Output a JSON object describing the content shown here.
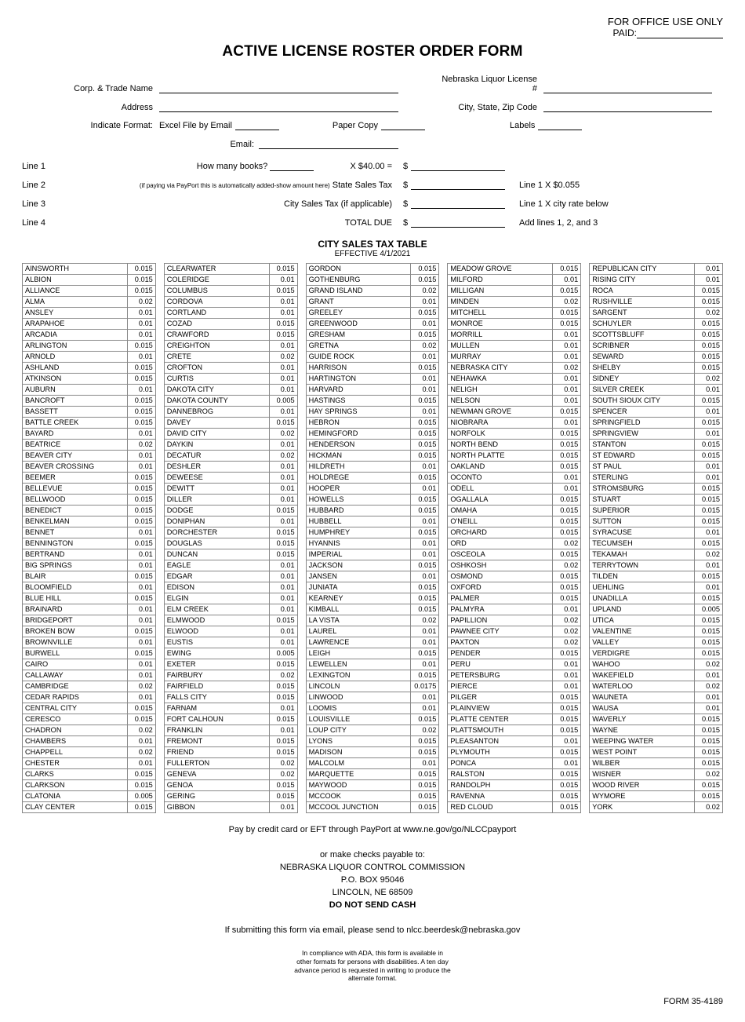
{
  "header": {
    "office_use": "FOR OFFICE USE ONLY",
    "paid_label": "PAID:",
    "title": "ACTIVE LICENSE ROSTER ORDER FORM"
  },
  "fields": {
    "corp_trade": "Corp. & Trade Name",
    "license_no": "Nebraska Liquor License #",
    "address": "Address",
    "city_state_zip": "City, State, Zip Code",
    "format_label": "Indicate Format:",
    "format_excel": "Excel File by Email",
    "format_paper": "Paper Copy",
    "format_labels": "Labels",
    "email_label": "Email:"
  },
  "lines": {
    "l1": "Line 1",
    "l1_q": "How many books?",
    "l1_price": "X $40.00 =",
    "l2": "Line 2",
    "l2_small": "(if paying via PayPort this is automatically added-show amount here)",
    "l2_label": "State Sales Tax",
    "l2_note": "Line 1 X $0.055",
    "l3": "Line 3",
    "l3_label": "City Sales Tax (if applicable)",
    "l3_note": "Line 1 X city rate below",
    "l4": "Line 4",
    "l4_label": "TOTAL DUE",
    "l4_note": "Add lines 1, 2, and 3",
    "dollar": "$"
  },
  "tax_table": {
    "heading": "CITY SALES TAX TABLE",
    "effective": "EFFECTIVE 4/1/2021",
    "cols": [
      [
        [
          "AINSWORTH",
          "0.015"
        ],
        [
          "ALBION",
          "0.015"
        ],
        [
          "ALLIANCE",
          "0.015"
        ],
        [
          "ALMA",
          "0.02"
        ],
        [
          "ANSLEY",
          "0.01"
        ],
        [
          "ARAPAHOE",
          "0.01"
        ],
        [
          "ARCADIA",
          "0.01"
        ],
        [
          "ARLINGTON",
          "0.015"
        ],
        [
          "ARNOLD",
          "0.01"
        ],
        [
          "ASHLAND",
          "0.015"
        ],
        [
          "ATKINSON",
          "0.015"
        ],
        [
          "AUBURN",
          "0.01"
        ],
        [
          "BANCROFT",
          "0.015"
        ],
        [
          "BASSETT",
          "0.015"
        ],
        [
          "BATTLE CREEK",
          "0.015"
        ],
        [
          "BAYARD",
          "0.01"
        ],
        [
          "BEATRICE",
          "0.02"
        ],
        [
          "BEAVER CITY",
          "0.01"
        ],
        [
          "BEAVER CROSSING",
          "0.01"
        ],
        [
          "BEEMER",
          "0.015"
        ],
        [
          "BELLEVUE",
          "0.015"
        ],
        [
          "BELLWOOD",
          "0.015"
        ],
        [
          "BENEDICT",
          "0.015"
        ],
        [
          "BENKELMAN",
          "0.015"
        ],
        [
          "BENNET",
          "0.01"
        ],
        [
          "BENNINGTON",
          "0.015"
        ],
        [
          "BERTRAND",
          "0.01"
        ],
        [
          "BIG SPRINGS",
          "0.01"
        ],
        [
          "BLAIR",
          "0.015"
        ],
        [
          "BLOOMFIELD",
          "0.01"
        ],
        [
          "BLUE HILL",
          "0.015"
        ],
        [
          "BRAINARD",
          "0.01"
        ],
        [
          "BRIDGEPORT",
          "0.01"
        ],
        [
          "BROKEN BOW",
          "0.015"
        ],
        [
          "BROWNVILLE",
          "0.01"
        ],
        [
          "BURWELL",
          "0.015"
        ],
        [
          "CAIRO",
          "0.01"
        ],
        [
          "CALLAWAY",
          "0.01"
        ],
        [
          "CAMBRIDGE",
          "0.02"
        ],
        [
          "CEDAR RAPIDS",
          "0.01"
        ],
        [
          "CENTRAL CITY",
          "0.015"
        ],
        [
          "CERESCO",
          "0.015"
        ],
        [
          "CHADRON",
          "0.02"
        ],
        [
          "CHAMBERS",
          "0.01"
        ],
        [
          "CHAPPELL",
          "0.02"
        ],
        [
          "CHESTER",
          "0.01"
        ],
        [
          "CLARKS",
          "0.015"
        ],
        [
          "CLARKSON",
          "0.015"
        ],
        [
          "CLATONIA",
          "0.005"
        ],
        [
          "CLAY CENTER",
          "0.015"
        ]
      ],
      [
        [
          "CLEARWATER",
          "0.015"
        ],
        [
          "COLERIDGE",
          "0.01"
        ],
        [
          "COLUMBUS",
          "0.015"
        ],
        [
          "CORDOVA",
          "0.01"
        ],
        [
          "CORTLAND",
          "0.01"
        ],
        [
          "COZAD",
          "0.015"
        ],
        [
          "CRAWFORD",
          "0.015"
        ],
        [
          "CREIGHTON",
          "0.01"
        ],
        [
          "CRETE",
          "0.02"
        ],
        [
          "CROFTON",
          "0.01"
        ],
        [
          "CURTIS",
          "0.01"
        ],
        [
          "DAKOTA CITY",
          "0.01"
        ],
        [
          "DAKOTA COUNTY",
          "0.005"
        ],
        [
          "DANNEBROG",
          "0.01"
        ],
        [
          "DAVEY",
          "0.015"
        ],
        [
          "DAVID CITY",
          "0.02"
        ],
        [
          "DAYKIN",
          "0.01"
        ],
        [
          "DECATUR",
          "0.02"
        ],
        [
          "DESHLER",
          "0.01"
        ],
        [
          "DEWEESE",
          "0.01"
        ],
        [
          "DEWITT",
          "0.01"
        ],
        [
          "DILLER",
          "0.01"
        ],
        [
          "DODGE",
          "0.015"
        ],
        [
          "DONIPHAN",
          "0.01"
        ],
        [
          "DORCHESTER",
          "0.015"
        ],
        [
          "DOUGLAS",
          "0.015"
        ],
        [
          "DUNCAN",
          "0.015"
        ],
        [
          "EAGLE",
          "0.01"
        ],
        [
          "EDGAR",
          "0.01"
        ],
        [
          "EDISON",
          "0.01"
        ],
        [
          "ELGIN",
          "0.01"
        ],
        [
          "ELM CREEK",
          "0.01"
        ],
        [
          "ELMWOOD",
          "0.015"
        ],
        [
          "ELWOOD",
          "0.01"
        ],
        [
          "EUSTIS",
          "0.01"
        ],
        [
          "EWING",
          "0.005"
        ],
        [
          "EXETER",
          "0.015"
        ],
        [
          "FAIRBURY",
          "0.02"
        ],
        [
          "FAIRFIELD",
          "0.015"
        ],
        [
          "FALLS CITY",
          "0.015"
        ],
        [
          "FARNAM",
          "0.01"
        ],
        [
          "FORT CALHOUN",
          "0.015"
        ],
        [
          "FRANKLIN",
          "0.01"
        ],
        [
          "FREMONT",
          "0.015"
        ],
        [
          "FRIEND",
          "0.015"
        ],
        [
          "FULLERTON",
          "0.02"
        ],
        [
          "GENEVA",
          "0.02"
        ],
        [
          "GENOA",
          "0.015"
        ],
        [
          "GERING",
          "0.015"
        ],
        [
          "GIBBON",
          "0.01"
        ]
      ],
      [
        [
          "GORDON",
          "0.015"
        ],
        [
          "GOTHENBURG",
          "0.015"
        ],
        [
          "GRAND ISLAND",
          "0.02"
        ],
        [
          "GRANT",
          "0.01"
        ],
        [
          "GREELEY",
          "0.015"
        ],
        [
          "GREENWOOD",
          "0.01"
        ],
        [
          "GRESHAM",
          "0.015"
        ],
        [
          "GRETNA",
          "0.02"
        ],
        [
          "GUIDE ROCK",
          "0.01"
        ],
        [
          "HARRISON",
          "0.015"
        ],
        [
          "HARTINGTON",
          "0.01"
        ],
        [
          "HARVARD",
          "0.01"
        ],
        [
          "HASTINGS",
          "0.015"
        ],
        [
          "HAY SPRINGS",
          "0.01"
        ],
        [
          "HEBRON",
          "0.015"
        ],
        [
          "HEMINGFORD",
          "0.015"
        ],
        [
          "HENDERSON",
          "0.015"
        ],
        [
          "HICKMAN",
          "0.015"
        ],
        [
          "HILDRETH",
          "0.01"
        ],
        [
          "HOLDREGE",
          "0.015"
        ],
        [
          "HOOPER",
          "0.01"
        ],
        [
          "HOWELLS",
          "0.015"
        ],
        [
          "HUBBARD",
          "0.015"
        ],
        [
          "HUBBELL",
          "0.01"
        ],
        [
          "HUMPHREY",
          "0.015"
        ],
        [
          "HYANNIS",
          "0.01"
        ],
        [
          "IMPERIAL",
          "0.01"
        ],
        [
          "JACKSON",
          "0.015"
        ],
        [
          "JANSEN",
          "0.01"
        ],
        [
          "JUNIATA",
          "0.015"
        ],
        [
          "KEARNEY",
          "0.015"
        ],
        [
          "KIMBALL",
          "0.015"
        ],
        [
          "LA VISTA",
          "0.02"
        ],
        [
          "LAUREL",
          "0.01"
        ],
        [
          "LAWRENCE",
          "0.01"
        ],
        [
          "LEIGH",
          "0.015"
        ],
        [
          "LEWELLEN",
          "0.01"
        ],
        [
          "LEXINGTON",
          "0.015"
        ],
        [
          "LINCOLN",
          "0.0175"
        ],
        [
          "LINWOOD",
          "0.01"
        ],
        [
          "LOOMIS",
          "0.01"
        ],
        [
          "LOUISVILLE",
          "0.015"
        ],
        [
          "LOUP CITY",
          "0.02"
        ],
        [
          "LYONS",
          "0.015"
        ],
        [
          "MADISON",
          "0.015"
        ],
        [
          "MALCOLM",
          "0.01"
        ],
        [
          "MARQUETTE",
          "0.015"
        ],
        [
          "MAYWOOD",
          "0.015"
        ],
        [
          "MCCOOK",
          "0.015"
        ],
        [
          "MCCOOL JUNCTION",
          "0.015"
        ]
      ],
      [
        [
          "MEADOW GROVE",
          "0.015"
        ],
        [
          "MILFORD",
          "0.01"
        ],
        [
          "MILLIGAN",
          "0.015"
        ],
        [
          "MINDEN",
          "0.02"
        ],
        [
          "MITCHELL",
          "0.015"
        ],
        [
          "MONROE",
          "0.015"
        ],
        [
          "MORRILL",
          "0.01"
        ],
        [
          "MULLEN",
          "0.01"
        ],
        [
          "MURRAY",
          "0.01"
        ],
        [
          "NEBRASKA CITY",
          "0.02"
        ],
        [
          "NEHAWKA",
          "0.01"
        ],
        [
          "NELIGH",
          "0.01"
        ],
        [
          "NELSON",
          "0.01"
        ],
        [
          "NEWMAN GROVE",
          "0.015"
        ],
        [
          "NIOBRARA",
          "0.01"
        ],
        [
          "NORFOLK",
          "0.015"
        ],
        [
          "NORTH BEND",
          "0.015"
        ],
        [
          "NORTH PLATTE",
          "0.015"
        ],
        [
          "OAKLAND",
          "0.015"
        ],
        [
          "OCONTO",
          "0.01"
        ],
        [
          "ODELL",
          "0.01"
        ],
        [
          "OGALLALA",
          "0.015"
        ],
        [
          "OMAHA",
          "0.015"
        ],
        [
          "O'NEILL",
          "0.015"
        ],
        [
          "ORCHARD",
          "0.015"
        ],
        [
          "ORD",
          "0.02"
        ],
        [
          "OSCEOLA",
          "0.015"
        ],
        [
          "OSHKOSH",
          "0.02"
        ],
        [
          "OSMOND",
          "0.015"
        ],
        [
          "OXFORD",
          "0.015"
        ],
        [
          "PALMER",
          "0.015"
        ],
        [
          "PALMYRA",
          "0.01"
        ],
        [
          "PAPILLION",
          "0.02"
        ],
        [
          "PAWNEE CITY",
          "0.02"
        ],
        [
          "PAXTON",
          "0.02"
        ],
        [
          "PENDER",
          "0.015"
        ],
        [
          "PERU",
          "0.01"
        ],
        [
          "PETERSBURG",
          "0.01"
        ],
        [
          "PIERCE",
          "0.01"
        ],
        [
          "PILGER",
          "0.015"
        ],
        [
          "PLAINVIEW",
          "0.015"
        ],
        [
          "PLATTE CENTER",
          "0.015"
        ],
        [
          "PLATTSMOUTH",
          "0.015"
        ],
        [
          "PLEASANTON",
          "0.01"
        ],
        [
          "PLYMOUTH",
          "0.015"
        ],
        [
          "PONCA",
          "0.01"
        ],
        [
          "RALSTON",
          "0.015"
        ],
        [
          "RANDOLPH",
          "0.015"
        ],
        [
          "RAVENNA",
          "0.015"
        ],
        [
          "RED CLOUD",
          "0.015"
        ]
      ],
      [
        [
          "REPUBLICAN CITY",
          "0.01"
        ],
        [
          "RISING CITY",
          "0.01"
        ],
        [
          "ROCA",
          "0.015"
        ],
        [
          "RUSHVILLE",
          "0.015"
        ],
        [
          "SARGENT",
          "0.02"
        ],
        [
          "SCHUYLER",
          "0.015"
        ],
        [
          "SCOTTSBLUFF",
          "0.015"
        ],
        [
          "SCRIBNER",
          "0.015"
        ],
        [
          "SEWARD",
          "0.015"
        ],
        [
          "SHELBY",
          "0.015"
        ],
        [
          "SIDNEY",
          "0.02"
        ],
        [
          "SILVER CREEK",
          "0.01"
        ],
        [
          "SOUTH SIOUX CITY",
          "0.015"
        ],
        [
          "SPENCER",
          "0.01"
        ],
        [
          "SPRINGFIELD",
          "0.015"
        ],
        [
          "SPRINGVIEW",
          "0.01"
        ],
        [
          "STANTON",
          "0.015"
        ],
        [
          "ST EDWARD",
          "0.015"
        ],
        [
          "ST PAUL",
          "0.01"
        ],
        [
          "STERLING",
          "0.01"
        ],
        [
          "STROMSBURG",
          "0.015"
        ],
        [
          "STUART",
          "0.015"
        ],
        [
          "SUPERIOR",
          "0.015"
        ],
        [
          "SUTTON",
          "0.015"
        ],
        [
          "SYRACUSE",
          "0.01"
        ],
        [
          "TECUMSEH",
          "0.015"
        ],
        [
          "TEKAMAH",
          "0.02"
        ],
        [
          "TERRYTOWN",
          "0.01"
        ],
        [
          "TILDEN",
          "0.015"
        ],
        [
          "UEHLING",
          "0.01"
        ],
        [
          "UNADILLA",
          "0.015"
        ],
        [
          "UPLAND",
          "0.005"
        ],
        [
          "UTICA",
          "0.015"
        ],
        [
          "VALENTINE",
          "0.015"
        ],
        [
          "VALLEY",
          "0.015"
        ],
        [
          "VERDIGRE",
          "0.015"
        ],
        [
          "WAHOO",
          "0.02"
        ],
        [
          "WAKEFIELD",
          "0.01"
        ],
        [
          "WATERLOO",
          "0.02"
        ],
        [
          "WAUNETA",
          "0.01"
        ],
        [
          "WAUSA",
          "0.01"
        ],
        [
          "WAVERLY",
          "0.015"
        ],
        [
          "WAYNE",
          "0.015"
        ],
        [
          "WEEPING WATER",
          "0.015"
        ],
        [
          "WEST POINT",
          "0.015"
        ],
        [
          "WILBER",
          "0.015"
        ],
        [
          "WISNER",
          "0.02"
        ],
        [
          "WOOD RIVER",
          "0.015"
        ],
        [
          "WYMORE",
          "0.015"
        ],
        [
          "YORK",
          "0.02"
        ]
      ]
    ]
  },
  "footer": {
    "payport": "Pay by credit card or EFT through PayPort at www.ne.gov/go/NLCCpayport",
    "or_checks": "or make checks payable to:",
    "agency": "NEBRASKA LIQUOR  CONTROL COMMISSION",
    "pobox": "P.O. BOX 95046",
    "city": "LINCOLN, NE 68509",
    "no_cash": "DO NOT SEND CASH",
    "email_submit": "If submitting this form via email, please send to nlcc.beerdesk@nebraska.gov",
    "ada": "In compliance with ADA, this form is available in other formats for persons with disabilities.\nA ten day advance period is requested in writing to produce the alternate format.",
    "form_no": "FORM 35-4189"
  }
}
